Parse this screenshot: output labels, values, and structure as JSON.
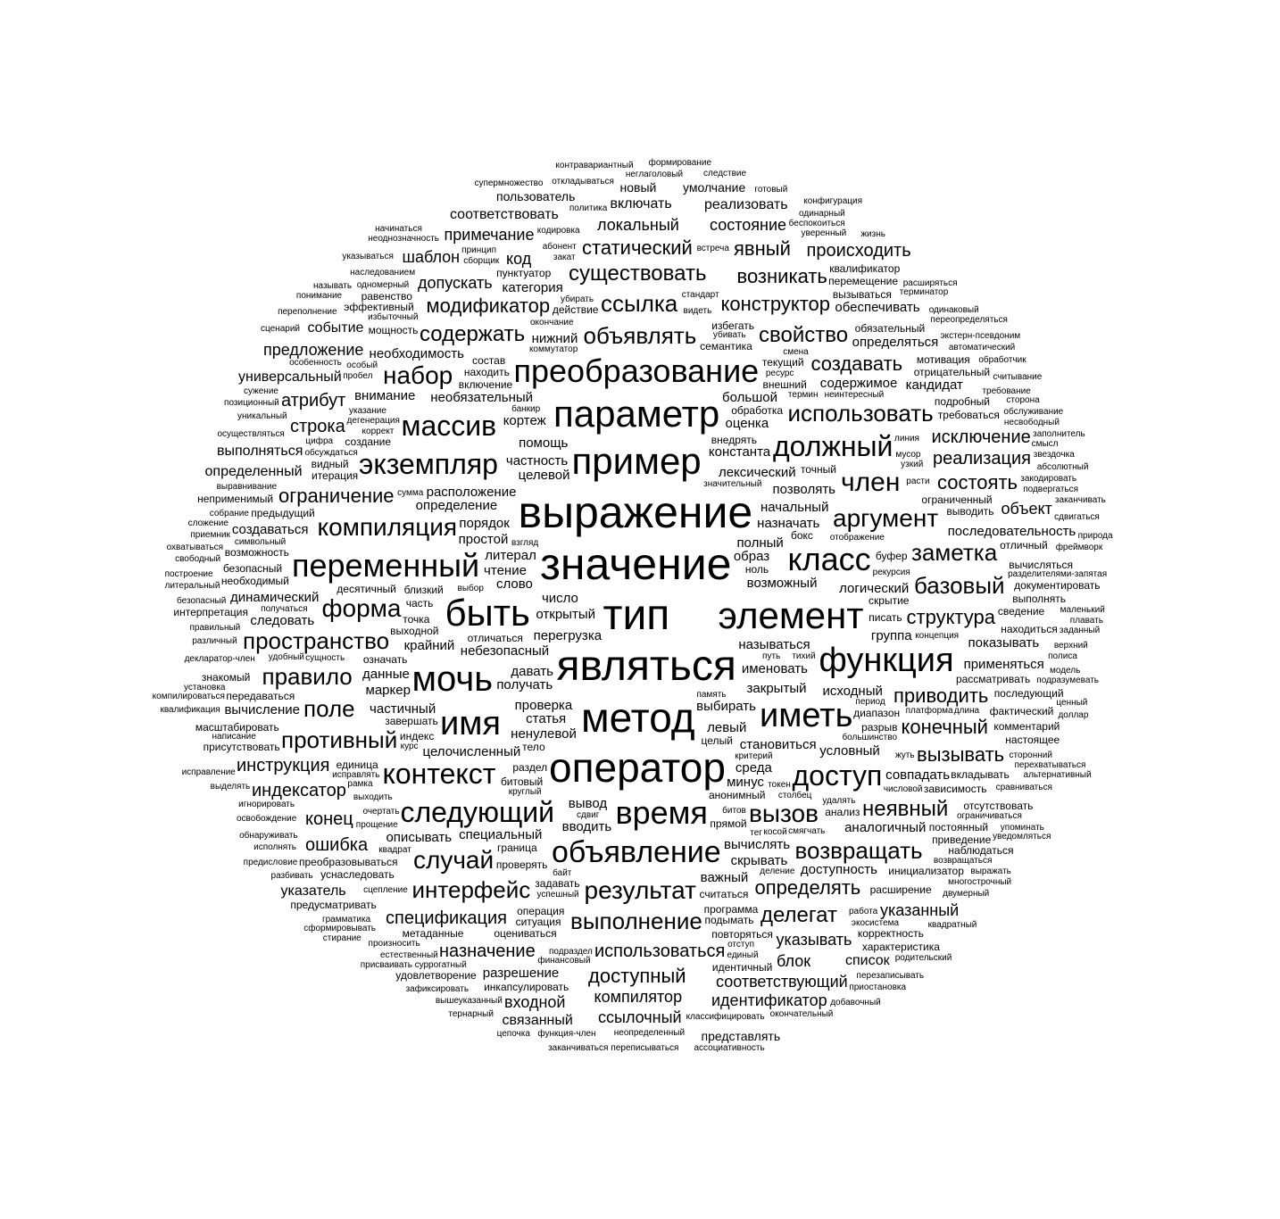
{
  "colors": {
    "text": "#000000",
    "background": "#ffffff"
  },
  "words": [
    "выражение",
    "значение",
    "тип",
    "являться",
    "метод",
    "оператор",
    "параметр",
    "пример",
    "быть",
    "элемент",
    "мочь",
    "иметь",
    "преобразование",
    "функция",
    "имя",
    "переменный",
    "класс",
    "экземпляр",
    "должный",
    "следующий",
    "время",
    "объявление",
    "массив",
    "компиляция",
    "член",
    "аргумент",
    "использовать",
    "контекст",
    "доступ",
    "набор",
    "пространство",
    "форма",
    "заметка",
    "базовый",
    "объявлять",
    "ссылка",
    "модификатор",
    "конструктор",
    "свойство",
    "содержать",
    "существовать",
    "возникать",
    "статический",
    "явный",
    "происходить",
    "правило",
    "противный",
    "поле",
    "случай",
    "интерфейс",
    "результат",
    "выполнение",
    "определять",
    "делегат",
    "возвращать",
    "вызов",
    "неявный",
    "вызывать",
    "конечный",
    "структура",
    "приводить",
    "создавать",
    "исключение",
    "реализация",
    "состоять",
    "объект",
    "строка",
    "атрибут",
    "ограничение",
    "инструкция",
    "индексатор",
    "конец",
    "ошибка",
    "указатель",
    "спецификация",
    "назначение",
    "использоваться",
    "доступный",
    "компилятор",
    "ссылочный",
    "связанный",
    "входной",
    "идентификатор",
    "соответствующий",
    "указывать",
    "указанный",
    "блок",
    "список",
    "представлять",
    "определенный",
    "универсальный",
    "предложение",
    "событие",
    "выполняться",
    "допускать",
    "шаблон",
    "код",
    "примечание",
    "соответствовать",
    "локальный",
    "состояние",
    "реализовать",
    "включать",
    "пользователь",
    "новый",
    "умолчание",
    "открытый",
    "выбирать",
    "перегрузка",
    "небезопасный",
    "возможный",
    "называться",
    "проверка",
    "число",
    "давать",
    "именовать",
    "закрытый",
    "лексический",
    "расположение",
    "ненулевой",
    "литерал",
    "становиться",
    "необязательный",
    "целочисленный",
    "назначать",
    "получать",
    "образ",
    "слово",
    "левый",
    "константа",
    "порядок",
    "простой",
    "частность",
    "определение",
    "специальный",
    "начальный",
    "логический",
    "целевой",
    "помощь",
    "среда",
    "позволять",
    "условный",
    "статья",
    "крайний",
    "содержимое",
    "исходный",
    "вывод",
    "вычислять",
    "аналогичный",
    "совпадать",
    "необходимость",
    "минус",
    "частичный",
    "вводить",
    "чтение",
    "большой",
    "оценка",
    "группа",
    "описывать",
    "последовательность",
    "динамический",
    "применяться",
    "данные",
    "скрывать",
    "показывать",
    "важный",
    "создаваться",
    "внимание",
    "категория",
    "следовать",
    "обеспечивать",
    "полный",
    "маркер",
    "кортеж",
    "доступность",
    "определяться",
    "разрешение",
    "вычисление",
    "кандидат",
    "нижний",
    "идентичный",
    "считаться",
    "преобразовываться",
    "возможность",
    "десятичный",
    "зависимость",
    "означать",
    "обязательный",
    "внедрять",
    "ограниченный",
    "целый",
    "рассматривать",
    "отличаться",
    "передаваться",
    "включение",
    "битовый",
    "семантика",
    "анонимный",
    "создание",
    "операция",
    "требоваться",
    "безопасный",
    "ноль",
    "тело",
    "выходной",
    "часть",
    "обработка",
    "действие",
    "раздел",
    "задавать",
    "завершать",
    "внешний",
    "граница",
    "расширение",
    "отрицательный",
    "инициализатор",
    "оцениваться",
    "предыдущий",
    "находиться",
    "диапазон",
    "индекс",
    "уснаследовать",
    "вызываться",
    "программа",
    "находить",
    "прямой",
    "метаданные",
    "выводить",
    "точка",
    "вычисляться",
    "вкладывать",
    "проверять",
    "избегать",
    "необходимый",
    "ситуация",
    "сведение",
    "точный",
    "текущий",
    "итерация",
    "подробный",
    "буфер",
    "бокс",
    "комментарий",
    "последующий",
    "скрытие",
    "повторяться",
    "фактический",
    "постоянный",
    "выполнять",
    "отсутствовать",
    "близкий",
    "эффективный",
    "отличный",
    "мотивация",
    "состав",
    "писать",
    "приведение",
    "разрыв",
    "инкапсулировать",
    "анализ",
    "единица",
    "документировать",
    "неприменимый",
    "квалификатор",
    "присутствовать",
    "пунктуатор",
    "подымать",
    "масштабировать",
    "видный",
    "корректность",
    "перемещение",
    "наблюдаться",
    "настоящее",
    "удовлетворение",
    "равенство",
    "знакомый",
    "мощность",
    "характеристика",
    "предусматривать",
    "интерпретация",
    "память",
    "большинство",
    "неинтересный",
    "значительный",
    "наследованием",
    "декларатор-член",
    "отображение",
    "разделителями-запятая",
    "символьный",
    "путь",
    "правильный",
    "классифицировать",
    "финансовый",
    "суррогатный",
    "сравниваться",
    "получаться",
    "одномерный",
    "концепция",
    "сцепление",
    "дегенерация",
    "особенность",
    "возвращаться",
    "смягчать",
    "сущность",
    "выбор",
    "выравнивание",
    "рекурсия",
    "убивать",
    "произносить",
    "подвергаться",
    "столбец",
    "уверенный",
    "экстерн-псевдоним",
    "автоматический",
    "платформа",
    "освобождение",
    "сторонний",
    "круглый",
    "битов",
    "очертать",
    "ограничиваться",
    "осуществляться",
    "выходить",
    "кодировка",
    "уникальный",
    "сдвиг",
    "удалять",
    "требование",
    "видеть",
    "критерий",
    "переопределяться",
    "токен",
    "подразумевать",
    "успешный",
    "банкир",
    "закодировать",
    "стандарт",
    "игнорировать",
    "линия",
    "окончание",
    "избыточный",
    "деление",
    "указание",
    "отступ",
    "единый",
    "тег",
    "обсуждаться",
    "термин",
    "пробел",
    "абонент",
    "различный",
    "грамматика",
    "многострочный",
    "расти",
    "ресурс",
    "удобный",
    "собрание",
    "политика",
    "неопределенный",
    "жуть",
    "убирать",
    "верхний",
    "взгляд",
    "терминатор",
    "безопасный",
    "беспокоиться",
    "коррект",
    "обслуживание",
    "мусор",
    "исправлять",
    "маленький",
    "вышеуказанный",
    "обработчик",
    "перехватываться",
    "рамка",
    "период",
    "зафиксировать",
    "коммутатор",
    "курс",
    "экосистема",
    "подраздел",
    "естественный",
    "обнаруживать",
    "полиса",
    "смена",
    "окончательный",
    "сформировывать",
    "исполнять",
    "сумма",
    "двумерный",
    "закат",
    "функция-член",
    "работа",
    "принцип",
    "неоднозначность",
    "позиционный",
    "одинаковый",
    "написание",
    "расширяться",
    "сторона",
    "откладываться",
    "прощение",
    "встреча",
    "считывание",
    "упоминать",
    "свободный",
    "модель",
    "охватываться",
    "переписываться",
    "фреймворк",
    "разбивать",
    "абсолютный",
    "присваивать",
    "перезаписывать",
    "предисловие",
    "литеральный",
    "альтернативный",
    "построение",
    "тихий",
    "тернарный",
    "смысл",
    "одинарный",
    "приемник",
    "несвободный",
    "сложение",
    "переполнение",
    "особый",
    "плавать",
    "заданный",
    "квадратный",
    "указываться",
    "неглаголовый",
    "супермножество",
    "выделять",
    "установка",
    "понимание",
    "жизнь",
    "квадрат",
    "косой",
    "узкий",
    "уведомляться",
    "готовый",
    "сценарий",
    "звездочка",
    "исправление",
    "длина",
    "ценный",
    "сборщик",
    "доллар",
    "байт",
    "начинаться",
    "называть",
    "заканчиваться",
    "сдвигаться",
    "добавочный",
    "компилироваться",
    "числовой",
    "приостановка",
    "контравариантный",
    "ассоциативность",
    "квалификация",
    "стирание",
    "заполнитель",
    "формирование",
    "природа",
    "заканчивать",
    "сужение",
    "выражать",
    "цепочка",
    "следствие",
    "родительский",
    "конфигурация",
    "цифра"
  ]
}
